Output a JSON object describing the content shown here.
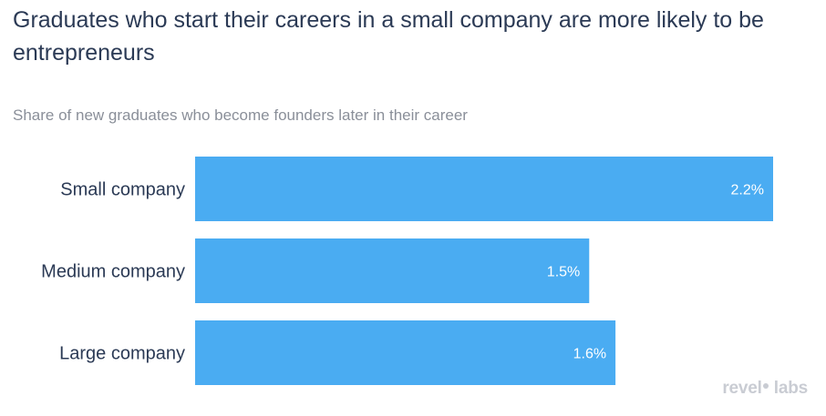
{
  "chart_data": {
    "type": "bar",
    "orientation": "horizontal",
    "title": "Graduates who start their careers in a small company are more likely to be entrepreneurs",
    "subtitle": "Share of new graduates who become founders later in their career",
    "categories": [
      "Small company",
      "Medium company",
      "Large company"
    ],
    "values": [
      2.2,
      1.5,
      1.6
    ],
    "value_labels": [
      "2.2%",
      "1.5%",
      "1.6%"
    ],
    "unit": "%",
    "xlim": [
      0,
      2.2
    ],
    "grid": false,
    "legend": "none",
    "colors": {
      "bar": "#4aacf2",
      "value_text": "#ffffff",
      "category_text": "#2b3a55",
      "title_text": "#2b3a55",
      "subtitle_text": "#8a8f99"
    }
  },
  "branding": {
    "name_start": "revel",
    "name_end": "labs"
  }
}
